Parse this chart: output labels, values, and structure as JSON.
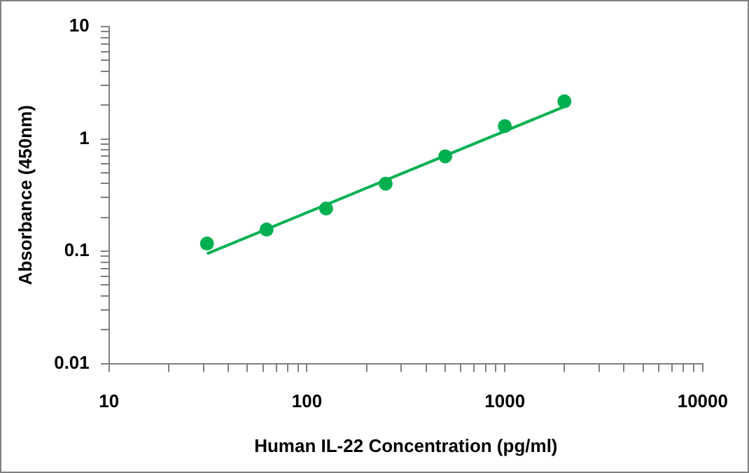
{
  "chart_data": {
    "type": "scatter",
    "xlabel": "Human IL-22 Concentration (pg/ml)",
    "ylabel": "Absorbance (450nm)",
    "log": "xy",
    "grid": false,
    "legend": false,
    "marker": "circle",
    "xlim": [
      10,
      10000
    ],
    "ylim": [
      0.01,
      10
    ],
    "xticks": [
      10,
      {
        "value": 20,
        "label": null
      },
      {
        "value": 30,
        "label": null
      },
      {
        "value": 40,
        "label": null
      },
      {
        "value": 50,
        "label": null
      },
      {
        "value": 60,
        "label": null
      },
      {
        "value": 70,
        "label": null
      },
      {
        "value": 80,
        "label": null
      },
      {
        "value": 90,
        "label": null
      },
      100,
      {
        "value": 200,
        "label": null
      },
      {
        "value": 300,
        "label": null
      },
      {
        "value": 400,
        "label": null
      },
      {
        "value": 500,
        "label": null
      },
      {
        "value": 600,
        "label": null
      },
      {
        "value": 700,
        "label": null
      },
      {
        "value": 800,
        "label": null
      },
      {
        "value": 900,
        "label": null
      },
      1000,
      {
        "value": 2000,
        "label": null
      },
      {
        "value": 3000,
        "label": null
      },
      {
        "value": 4000,
        "label": null
      },
      {
        "value": 5000,
        "label": null
      },
      {
        "value": 6000,
        "label": null
      },
      {
        "value": 7000,
        "label": null
      },
      {
        "value": 8000,
        "label": null
      },
      {
        "value": 9000,
        "label": null
      },
      10000
    ],
    "yticks": [
      0.01,
      {
        "value": 0.02,
        "label": null
      },
      {
        "value": 0.03,
        "label": null
      },
      {
        "value": 0.04,
        "label": null
      },
      {
        "value": 0.05,
        "label": null
      },
      {
        "value": 0.06,
        "label": null
      },
      {
        "value": 0.07,
        "label": null
      },
      {
        "value": 0.08,
        "label": null
      },
      {
        "value": 0.09,
        "label": null
      },
      0.1,
      {
        "value": 0.2,
        "label": null
      },
      {
        "value": 0.3,
        "label": null
      },
      {
        "value": 0.4,
        "label": null
      },
      {
        "value": 0.5,
        "label": null
      },
      {
        "value": 0.6,
        "label": null
      },
      {
        "value": 0.7,
        "label": null
      },
      {
        "value": 0.8,
        "label": null
      },
      {
        "value": 0.9,
        "label": null
      },
      1,
      {
        "value": 2,
        "label": null
      },
      {
        "value": 3,
        "label": null
      },
      {
        "value": 4,
        "label": null
      },
      {
        "value": 5,
        "label": null
      },
      {
        "value": 6,
        "label": null
      },
      {
        "value": 7,
        "label": null
      },
      {
        "value": 8,
        "label": null
      },
      {
        "value": 9,
        "label": null
      },
      10
    ],
    "series": [
      {
        "type": "scatter",
        "color": "#00b050",
        "x": [
          31.25,
          62.5,
          125,
          250,
          500,
          1000,
          2000
        ],
        "values": [
          0.117,
          0.156,
          0.24,
          0.4,
          0.7,
          1.3,
          2.16
        ]
      },
      {
        "type": "line",
        "color": "#00b050",
        "marker": "none",
        "x": [
          31.25,
          2000
        ],
        "values": [
          0.095,
          1.94
        ]
      }
    ]
  }
}
